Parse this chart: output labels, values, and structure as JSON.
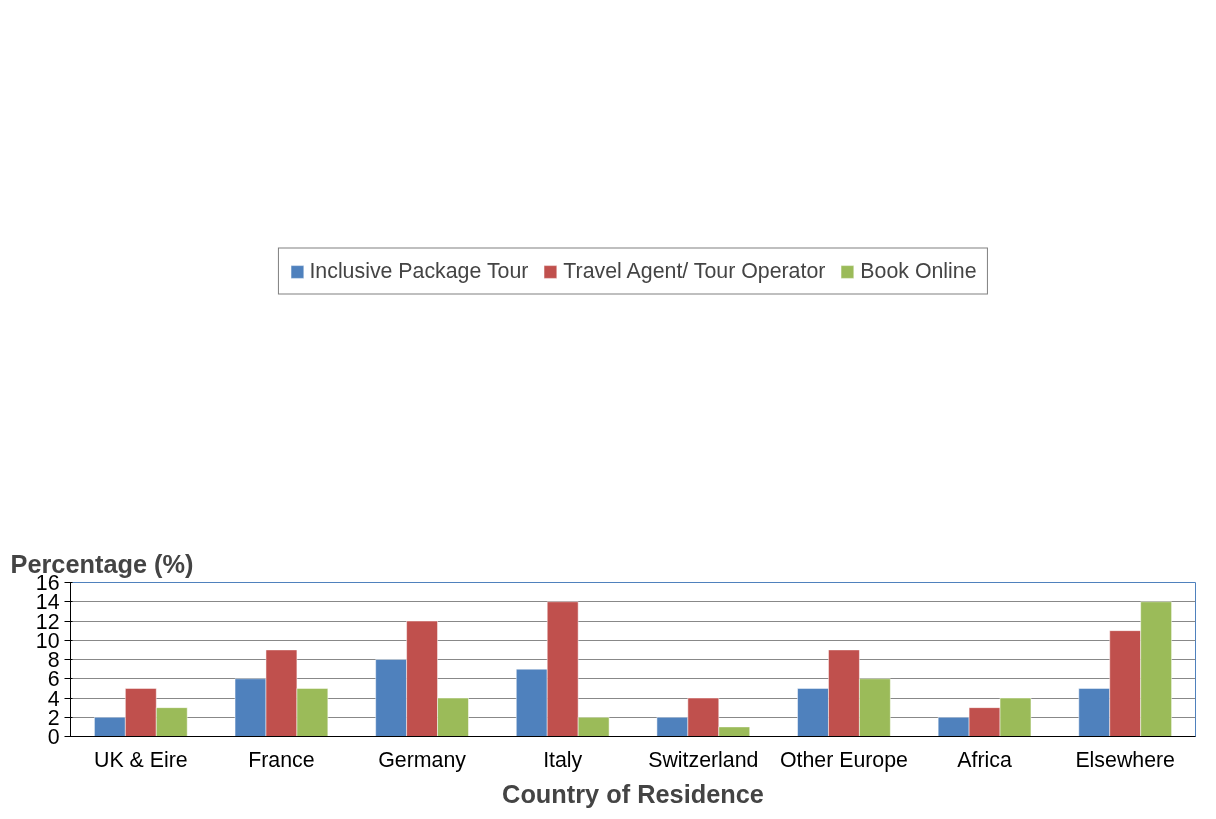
{
  "chart_data": {
    "type": "bar",
    "xlabel": "Country of Residence",
    "ylabel": "Percentage (%)",
    "categories": [
      "UK & Eire",
      "France",
      "Germany",
      "Italy",
      "Switzerland",
      "Other Europe",
      "Africa",
      "Elsewhere"
    ],
    "series": [
      {
        "name": "Inclusive Package Tour",
        "color": "#4f81bd",
        "values": [
          2,
          6,
          8,
          7,
          2,
          5,
          2,
          5
        ]
      },
      {
        "name": "Travel Agent/ Tour Operator",
        "color": "#c0504d",
        "values": [
          5,
          9,
          12,
          14,
          4,
          9,
          3,
          11
        ]
      },
      {
        "name": "Book Online",
        "color": "#9bbb59",
        "values": [
          3,
          5,
          4,
          2,
          1,
          6,
          4,
          14
        ]
      }
    ],
    "ylim": [
      0,
      16
    ],
    "yticks": [
      0,
      2,
      4,
      6,
      8,
      10,
      12,
      14,
      16
    ],
    "grid": "y",
    "legend": "top"
  }
}
